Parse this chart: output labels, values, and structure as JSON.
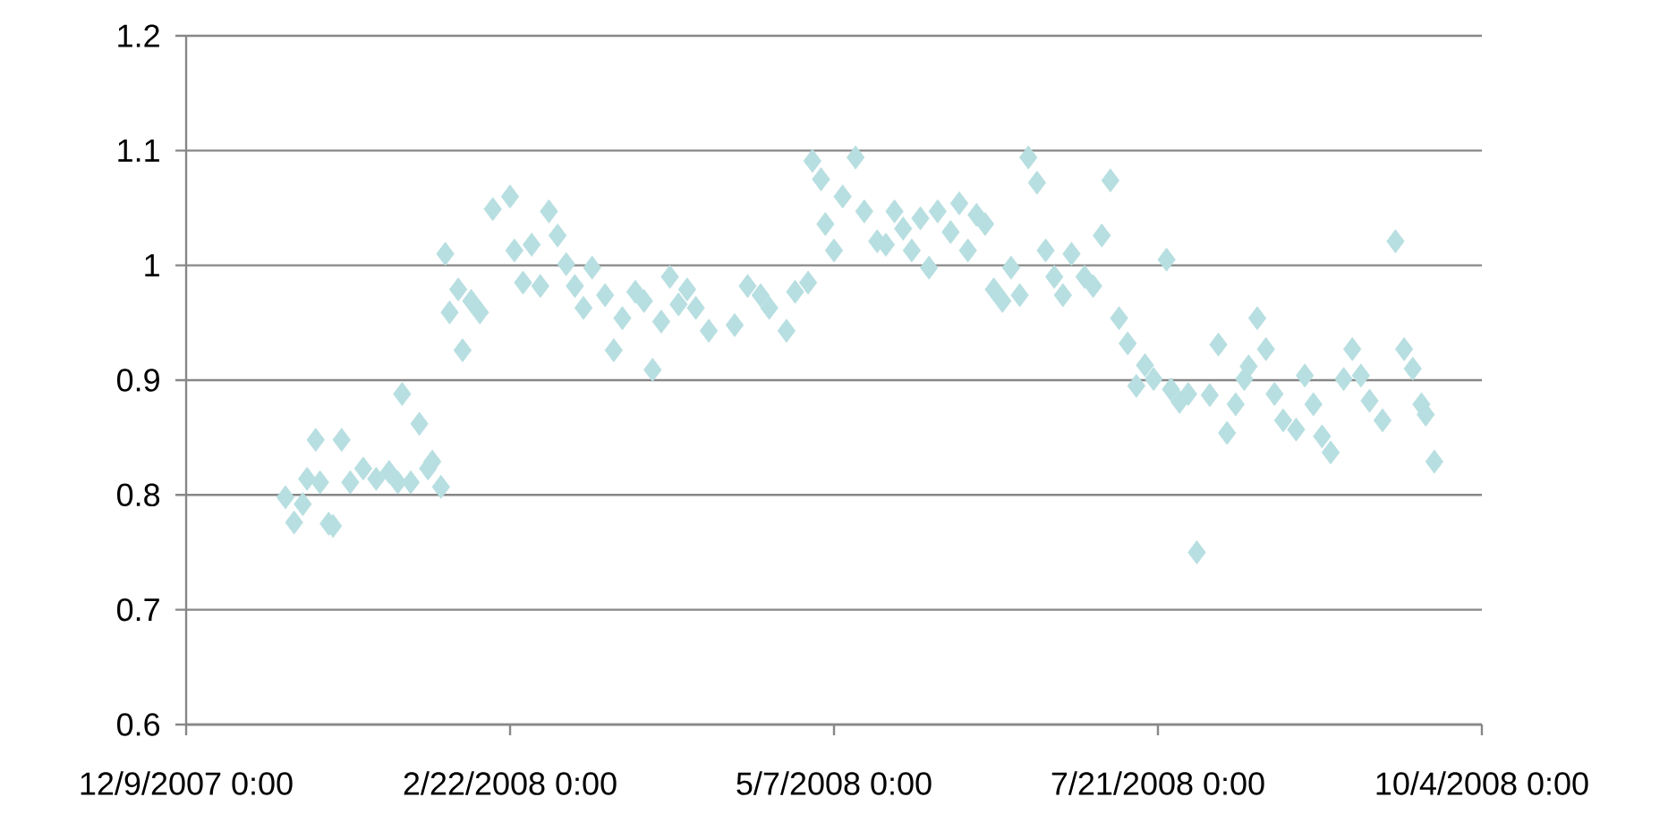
{
  "chart_data": {
    "type": "scatter",
    "marker": "diamond",
    "grid": "y",
    "color": "#b7dee0",
    "xlim": [
      "2007-12-09",
      "2008-10-04"
    ],
    "xticks": [
      {
        "value": "2007-12-09",
        "label": "12/9/2007 0:00"
      },
      {
        "value": "2008-02-22",
        "label": "2/22/2008 0:00"
      },
      {
        "value": "2008-05-07",
        "label": "5/7/2008 0:00"
      },
      {
        "value": "2008-07-21",
        "label": "7/21/2008 0:00"
      },
      {
        "value": "2008-10-04",
        "label": "10/4/2008 0:00"
      }
    ],
    "ylim": [
      0.6,
      1.2
    ],
    "yticks": [
      0.6,
      0.7,
      0.8,
      0.9,
      1,
      1.1,
      1.2
    ],
    "x": [
      "2008-01-01",
      "2008-01-03",
      "2008-01-05",
      "2008-01-06",
      "2008-01-08",
      "2008-01-09",
      "2008-01-11",
      "2008-01-12",
      "2008-01-14",
      "2008-01-16",
      "2008-01-19",
      "2008-01-22",
      "2008-01-25",
      "2008-01-27",
      "2008-01-28",
      "2008-01-30",
      "2008-02-01",
      "2008-02-03",
      "2008-02-04",
      "2008-02-06",
      "2008-02-07",
      "2008-02-08",
      "2008-02-10",
      "2008-02-11",
      "2008-02-13",
      "2008-02-15",
      "2008-02-18",
      "2008-02-22",
      "2008-02-23",
      "2008-02-25",
      "2008-02-27",
      "2008-02-29",
      "2008-03-02",
      "2008-03-04",
      "2008-03-06",
      "2008-03-08",
      "2008-03-10",
      "2008-03-12",
      "2008-03-15",
      "2008-03-17",
      "2008-03-19",
      "2008-03-22",
      "2008-03-24",
      "2008-03-26",
      "2008-03-28",
      "2008-03-30",
      "2008-04-01",
      "2008-04-03",
      "2008-04-05",
      "2008-04-08",
      "2008-04-14",
      "2008-04-17",
      "2008-04-20",
      "2008-04-22",
      "2008-04-26",
      "2008-04-28",
      "2008-05-01",
      "2008-05-02",
      "2008-05-04",
      "2008-05-05",
      "2008-05-07",
      "2008-05-09",
      "2008-05-12",
      "2008-05-14",
      "2008-05-17",
      "2008-05-19",
      "2008-05-21",
      "2008-05-23",
      "2008-05-25",
      "2008-05-27",
      "2008-05-29",
      "2008-05-31",
      "2008-06-03",
      "2008-06-05",
      "2008-06-07",
      "2008-06-09",
      "2008-06-11",
      "2008-06-13",
      "2008-06-15",
      "2008-06-17",
      "2008-06-19",
      "2008-06-21",
      "2008-06-23",
      "2008-06-25",
      "2008-06-27",
      "2008-06-29",
      "2008-07-01",
      "2008-07-04",
      "2008-07-06",
      "2008-07-08",
      "2008-07-10",
      "2008-07-12",
      "2008-07-14",
      "2008-07-16",
      "2008-07-18",
      "2008-07-20",
      "2008-07-23",
      "2008-07-24",
      "2008-07-26",
      "2008-07-28",
      "2008-07-30",
      "2008-08-02",
      "2008-08-04",
      "2008-08-06",
      "2008-08-08",
      "2008-08-10",
      "2008-08-11",
      "2008-08-13",
      "2008-08-15",
      "2008-08-17",
      "2008-08-19",
      "2008-08-22",
      "2008-08-24",
      "2008-08-26",
      "2008-08-28",
      "2008-08-30",
      "2008-09-02",
      "2008-09-04",
      "2008-09-06",
      "2008-09-08",
      "2008-09-11",
      "2008-09-14",
      "2008-09-16",
      "2008-09-18",
      "2008-09-20",
      "2008-09-21",
      "2008-09-23"
    ],
    "values": [
      0.798,
      0.776,
      0.792,
      0.814,
      0.848,
      0.811,
      0.775,
      0.773,
      0.848,
      0.811,
      0.823,
      0.814,
      0.82,
      0.811,
      0.888,
      0.811,
      0.862,
      0.823,
      0.829,
      0.807,
      1.01,
      0.959,
      0.979,
      0.926,
      0.969,
      0.959,
      1.049,
      1.06,
      1.013,
      0.985,
      1.018,
      0.982,
      1.047,
      1.026,
      1.001,
      0.982,
      0.963,
      0.998,
      0.974,
      0.926,
      0.954,
      0.977,
      0.969,
      0.909,
      0.951,
      0.99,
      0.966,
      0.979,
      0.963,
      0.943,
      0.948,
      0.982,
      0.974,
      0.963,
      0.943,
      0.977,
      0.985,
      1.091,
      1.075,
      1.036,
      1.013,
      1.06,
      1.094,
      1.047,
      1.021,
      1.018,
      1.047,
      1.032,
      1.013,
      1.041,
      0.998,
      1.047,
      1.029,
      1.054,
      1.013,
      1.044,
      1.036,
      0.979,
      0.969,
      0.998,
      0.974,
      1.094,
      1.072,
      1.013,
      0.99,
      0.974,
      1.01,
      0.99,
      0.982,
      1.026,
      1.074,
      0.954,
      0.932,
      0.895,
      0.913,
      0.901,
      1.005,
      0.892,
      0.881,
      0.888,
      0.75,
      0.887,
      0.931,
      0.854,
      0.879,
      0.901,
      0.912,
      0.954,
      0.927,
      0.888,
      0.865,
      0.857,
      0.904,
      0.879,
      0.851,
      0.837,
      0.901,
      0.927,
      0.904,
      0.882,
      0.865,
      1.021,
      0.927,
      0.91,
      0.879,
      0.87,
      0.829
    ]
  }
}
